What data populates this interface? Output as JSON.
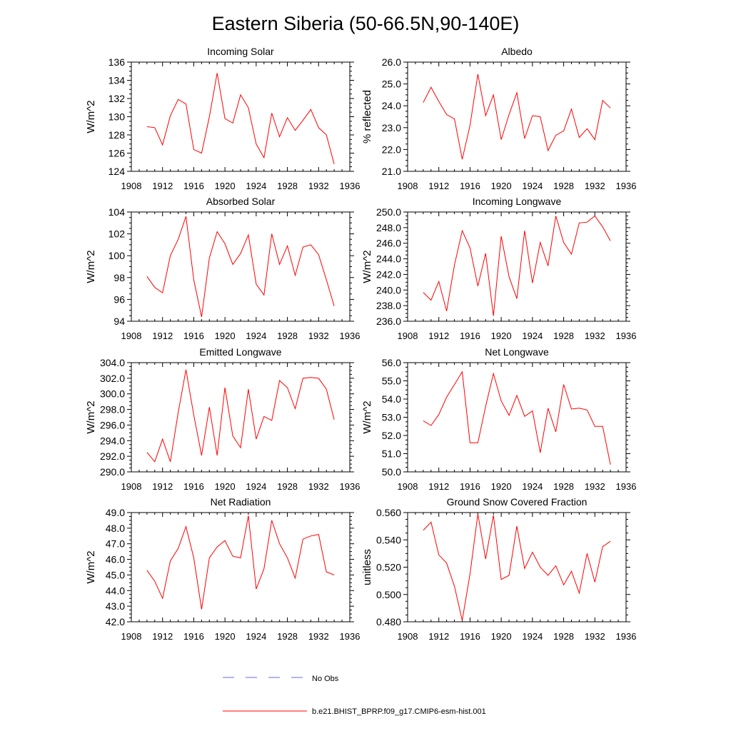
{
  "title": "Eastern Siberia (50-66.5N,90-140E)",
  "legend": {
    "placement": "bottom-center",
    "entries": [
      {
        "label": "No Obs",
        "color": "#6b6bd6",
        "style": "dashed"
      },
      {
        "label": "b.e21.BHIST_BPRP.f09_g17.CMIP6-esm-hist.001",
        "color": "#ff0000",
        "style": "solid"
      }
    ]
  },
  "chart_data": [
    {
      "type": "line",
      "title": "Incoming Solar",
      "ylabel": "W/m^2",
      "xlim": [
        1908,
        1936
      ],
      "ylim": [
        124,
        136
      ],
      "xticks": [
        1908,
        1912,
        1916,
        1920,
        1924,
        1928,
        1932,
        1936
      ],
      "yticks": [
        "124",
        "126",
        "128",
        "130",
        "132",
        "134",
        "136"
      ],
      "x": [
        1910,
        1911,
        1912,
        1913,
        1914,
        1915,
        1916,
        1917,
        1918,
        1919,
        1920,
        1921,
        1922,
        1923,
        1924,
        1925,
        1926,
        1927,
        1928,
        1929,
        1930,
        1931,
        1932,
        1933,
        1934
      ],
      "series": [
        {
          "color": "#ff0000",
          "values": [
            128.9,
            128.8,
            126.9,
            130.1,
            131.9,
            131.4,
            126.4,
            126.0,
            130.0,
            134.8,
            129.8,
            129.3,
            132.4,
            131.0,
            127.0,
            125.5,
            130.4,
            127.8,
            129.9,
            128.5,
            129.6,
            130.8,
            128.8,
            128.0,
            124.8
          ]
        }
      ]
    },
    {
      "type": "line",
      "title": "Albedo",
      "ylabel": "% reflected",
      "xlim": [
        1908,
        1936
      ],
      "ylim": [
        21,
        26
      ],
      "xticks": [
        1908,
        1912,
        1916,
        1920,
        1924,
        1928,
        1932,
        1936
      ],
      "yticks": [
        "21.0",
        "22.0",
        "23.0",
        "24.0",
        "25.0",
        "26.0"
      ],
      "x": [
        1910,
        1911,
        1912,
        1913,
        1914,
        1915,
        1916,
        1917,
        1918,
        1919,
        1920,
        1921,
        1922,
        1923,
        1924,
        1925,
        1926,
        1927,
        1928,
        1929,
        1930,
        1931,
        1932,
        1933,
        1934
      ],
      "series": [
        {
          "color": "#ff0000",
          "values": [
            24.15,
            24.85,
            24.2,
            23.6,
            23.4,
            21.55,
            23.1,
            25.45,
            23.55,
            24.5,
            22.45,
            23.6,
            24.6,
            22.5,
            23.55,
            23.5,
            21.95,
            22.65,
            22.85,
            23.85,
            22.55,
            22.95,
            22.45,
            24.25,
            23.9
          ]
        }
      ]
    },
    {
      "type": "line",
      "title": "Absorbed Solar",
      "ylabel": "W/m^2",
      "xlim": [
        1908,
        1936
      ],
      "ylim": [
        94,
        104
      ],
      "xticks": [
        1908,
        1912,
        1916,
        1920,
        1924,
        1928,
        1932,
        1936
      ],
      "yticks": [
        "94",
        "96",
        "98",
        "100",
        "102",
        "104"
      ],
      "x": [
        1910,
        1911,
        1912,
        1913,
        1914,
        1915,
        1916,
        1917,
        1918,
        1919,
        1920,
        1921,
        1922,
        1923,
        1924,
        1925,
        1926,
        1927,
        1928,
        1929,
        1930,
        1931,
        1932,
        1933,
        1934
      ],
      "series": [
        {
          "color": "#ff0000",
          "values": [
            98.1,
            97.1,
            96.6,
            100.0,
            101.5,
            103.6,
            97.8,
            94.4,
            99.8,
            102.2,
            101.1,
            99.2,
            100.2,
            101.9,
            97.4,
            96.4,
            102.0,
            99.2,
            100.9,
            98.2,
            100.8,
            101.0,
            100.1,
            97.8,
            95.4
          ]
        }
      ]
    },
    {
      "type": "line",
      "title": "Incoming Longwave",
      "ylabel": "W/m^2",
      "xlim": [
        1908,
        1936
      ],
      "ylim": [
        236,
        250
      ],
      "xticks": [
        1908,
        1912,
        1916,
        1920,
        1924,
        1928,
        1932,
        1936
      ],
      "yticks": [
        "236.0",
        "238.0",
        "240.0",
        "242.0",
        "244.0",
        "246.0",
        "248.0",
        "250.0"
      ],
      "x": [
        1910,
        1911,
        1912,
        1913,
        1914,
        1915,
        1916,
        1917,
        1918,
        1919,
        1920,
        1921,
        1922,
        1923,
        1924,
        1925,
        1926,
        1927,
        1928,
        1929,
        1930,
        1931,
        1932,
        1933,
        1934
      ],
      "series": [
        {
          "color": "#ff0000",
          "values": [
            239.7,
            238.7,
            241.1,
            237.3,
            243.2,
            247.6,
            245.4,
            240.5,
            244.7,
            236.7,
            246.9,
            241.7,
            238.9,
            247.6,
            240.9,
            246.1,
            243.1,
            249.5,
            246.1,
            244.6,
            248.6,
            248.7,
            249.5,
            248.1,
            246.3
          ]
        }
      ]
    },
    {
      "type": "line",
      "title": "Emitted Longwave",
      "ylabel": "W/m^2",
      "xlim": [
        1908,
        1936
      ],
      "ylim": [
        290,
        304
      ],
      "xticks": [
        1908,
        1912,
        1916,
        1920,
        1924,
        1928,
        1932,
        1936
      ],
      "yticks": [
        "290.0",
        "292.0",
        "294.0",
        "296.0",
        "298.0",
        "300.0",
        "302.0",
        "304.0"
      ],
      "x": [
        1910,
        1911,
        1912,
        1913,
        1914,
        1915,
        1916,
        1917,
        1918,
        1919,
        1920,
        1921,
        1922,
        1923,
        1924,
        1925,
        1926,
        1927,
        1928,
        1929,
        1930,
        1931,
        1932,
        1933,
        1934
      ],
      "series": [
        {
          "color": "#ff0000",
          "values": [
            292.5,
            291.3,
            294.2,
            291.3,
            297.6,
            303.1,
            297.3,
            292.1,
            298.3,
            292.1,
            300.8,
            294.6,
            293.1,
            300.6,
            294.2,
            297.1,
            296.6,
            301.7,
            300.8,
            298.1,
            302.0,
            302.1,
            302.0,
            300.6,
            296.7
          ]
        }
      ]
    },
    {
      "type": "line",
      "title": "Net Longwave",
      "ylabel": "W/m^2",
      "xlim": [
        1908,
        1936
      ],
      "ylim": [
        50,
        56
      ],
      "xticks": [
        1908,
        1912,
        1916,
        1920,
        1924,
        1928,
        1932,
        1936
      ],
      "yticks": [
        "50.0",
        "51.0",
        "52.0",
        "53.0",
        "54.0",
        "55.0",
        "56.0"
      ],
      "x": [
        1910,
        1911,
        1912,
        1913,
        1914,
        1915,
        1916,
        1917,
        1918,
        1919,
        1920,
        1921,
        1922,
        1923,
        1924,
        1925,
        1926,
        1927,
        1928,
        1929,
        1930,
        1931,
        1932,
        1933,
        1934
      ],
      "series": [
        {
          "color": "#ff0000",
          "values": [
            52.8,
            52.55,
            53.15,
            54.1,
            54.8,
            55.5,
            51.6,
            51.6,
            53.6,
            55.4,
            53.9,
            53.1,
            54.2,
            53.05,
            53.35,
            51.05,
            53.5,
            52.2,
            54.8,
            53.45,
            53.5,
            53.4,
            52.5,
            52.5,
            50.4
          ]
        }
      ]
    },
    {
      "type": "line",
      "title": "Net Radiation",
      "ylabel": "W/m^2",
      "xlim": [
        1908,
        1936
      ],
      "ylim": [
        42,
        49
      ],
      "xticks": [
        1908,
        1912,
        1916,
        1920,
        1924,
        1928,
        1932,
        1936
      ],
      "yticks": [
        "42.0",
        "43.0",
        "44.0",
        "45.0",
        "46.0",
        "47.0",
        "48.0",
        "49.0"
      ],
      "x": [
        1910,
        1911,
        1912,
        1913,
        1914,
        1915,
        1916,
        1917,
        1918,
        1919,
        1920,
        1921,
        1922,
        1923,
        1924,
        1925,
        1926,
        1927,
        1928,
        1929,
        1930,
        1931,
        1932,
        1933,
        1934
      ],
      "series": [
        {
          "color": "#ff0000",
          "values": [
            45.3,
            44.6,
            43.5,
            45.9,
            46.7,
            48.1,
            46.1,
            42.8,
            46.1,
            46.8,
            47.2,
            46.2,
            46.1,
            48.8,
            44.1,
            45.4,
            48.5,
            47.0,
            46.1,
            44.8,
            47.3,
            47.5,
            47.6,
            45.2,
            45.0
          ]
        }
      ]
    },
    {
      "type": "line",
      "title": "Ground Snow Covered Fraction",
      "ylabel": "unitless",
      "xlim": [
        1908,
        1936
      ],
      "ylim": [
        0.48,
        0.56
      ],
      "xticks": [
        1908,
        1912,
        1916,
        1920,
        1924,
        1928,
        1932,
        1936
      ],
      "yticks": [
        "0.480",
        "0.500",
        "0.520",
        "0.540",
        "0.560"
      ],
      "x": [
        1910,
        1911,
        1912,
        1913,
        1914,
        1915,
        1916,
        1917,
        1918,
        1919,
        1920,
        1921,
        1922,
        1923,
        1924,
        1925,
        1926,
        1927,
        1928,
        1929,
        1930,
        1931,
        1932,
        1933,
        1934
      ],
      "series": [
        {
          "color": "#ff0000",
          "values": [
            0.547,
            0.553,
            0.529,
            0.523,
            0.506,
            0.481,
            0.515,
            0.559,
            0.526,
            0.558,
            0.511,
            0.514,
            0.55,
            0.519,
            0.531,
            0.52,
            0.514,
            0.521,
            0.507,
            0.517,
            0.501,
            0.53,
            0.509,
            0.535,
            0.539
          ]
        }
      ]
    }
  ]
}
